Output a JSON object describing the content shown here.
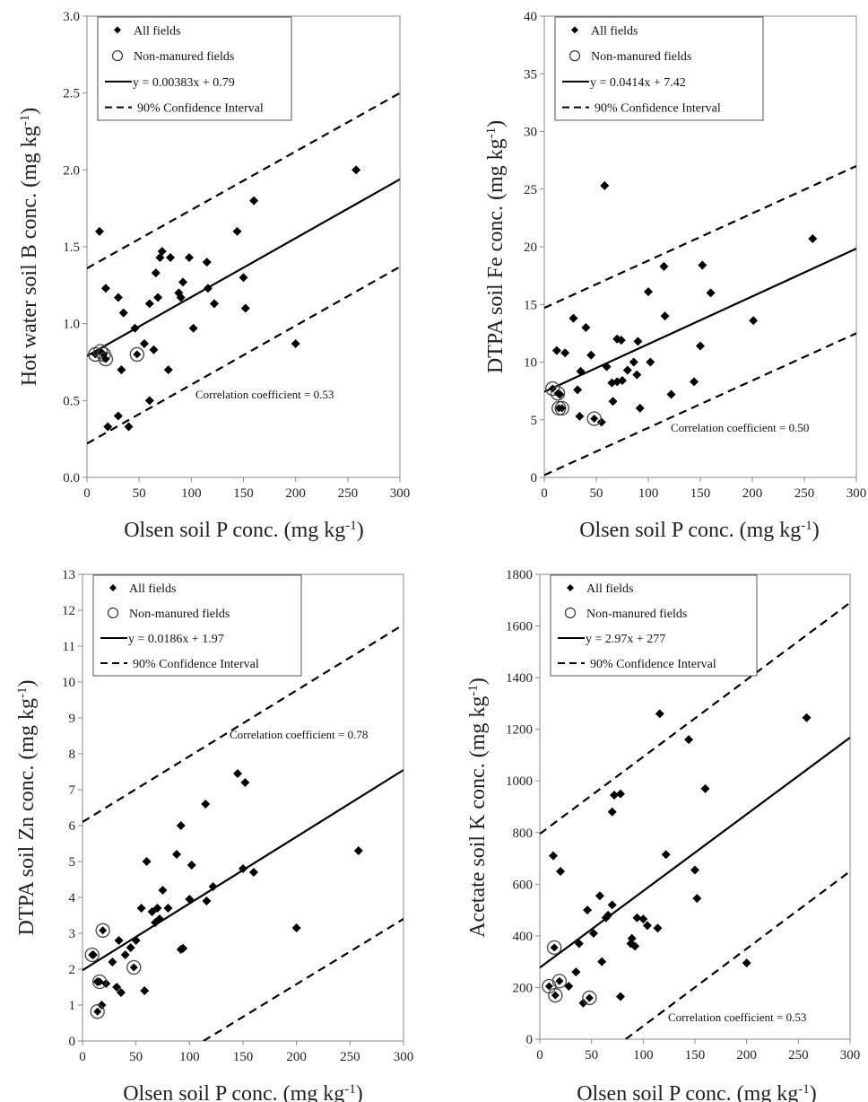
{
  "figure": {
    "legend": {
      "all_fields": "All fields",
      "non_manured": "Non-manured fields",
      "ci": "90% Confidence Interval"
    }
  },
  "chart_data": [
    {
      "type": "scatter",
      "xlabel": "Olsen soil P conc. (mg kg-1)",
      "ylabel": "Hot water soil B conc. (mg kg-1)",
      "xlim": [
        0,
        300
      ],
      "ylim": [
        0,
        3
      ],
      "xticks": [
        "0",
        "50",
        "100",
        "150",
        "200",
        "250",
        "300"
      ],
      "yticks": [
        "0.0",
        "0.5",
        "1.0",
        "1.5",
        "2.0",
        "2.5",
        "3.0"
      ],
      "equation": "y = 0.00383x + 0.79",
      "fit": {
        "slope": 0.00383,
        "intercept": 0.79
      },
      "ci": {
        "upper": [
          [
            0,
            1.36
          ],
          [
            300,
            2.5
          ]
        ],
        "lower": [
          [
            0,
            0.22
          ],
          [
            300,
            1.37
          ]
        ]
      },
      "correlation": "Correlation  coefficient  = 0.53",
      "legend_position": "top-left",
      "grid": false,
      "all_fields": [
        [
          12,
          1.6
        ],
        [
          18,
          1.23
        ],
        [
          30,
          1.17
        ],
        [
          35,
          1.07
        ],
        [
          46,
          0.97
        ],
        [
          55,
          0.87
        ],
        [
          60,
          1.13
        ],
        [
          66,
          1.33
        ],
        [
          70,
          1.43
        ],
        [
          72,
          1.47
        ],
        [
          68,
          1.17
        ],
        [
          80,
          1.43
        ],
        [
          88,
          1.2
        ],
        [
          90,
          1.17
        ],
        [
          92,
          1.27
        ],
        [
          98,
          1.43
        ],
        [
          102,
          0.97
        ],
        [
          115,
          1.4
        ],
        [
          116,
          1.23
        ],
        [
          122,
          1.13
        ],
        [
          144,
          1.6
        ],
        [
          150,
          1.3
        ],
        [
          152,
          1.1
        ],
        [
          160,
          1.8
        ],
        [
          200,
          0.87
        ],
        [
          258,
          2.0
        ],
        [
          33,
          0.7
        ],
        [
          40,
          0.33
        ],
        [
          30,
          0.4
        ],
        [
          20,
          0.33
        ],
        [
          60,
          0.5
        ],
        [
          64,
          0.83
        ],
        [
          78,
          0.7
        ]
      ],
      "non_manured": [
        [
          8,
          0.8
        ],
        [
          13,
          0.82
        ],
        [
          16,
          0.8
        ],
        [
          18,
          0.77
        ],
        [
          48,
          0.8
        ]
      ]
    },
    {
      "type": "scatter",
      "xlabel": "Olsen soil P conc. (mg kg-1)",
      "ylabel": "DTPA soil Fe conc. (mg kg-1)",
      "xlim": [
        0,
        300
      ],
      "ylim": [
        0,
        40
      ],
      "xticks": [
        "0",
        "50",
        "100",
        "150",
        "200",
        "250",
        "300"
      ],
      "yticks": [
        "0",
        "5",
        "10",
        "15",
        "20",
        "25",
        "30",
        "35",
        "40"
      ],
      "equation": "y = 0.0414x + 7.42",
      "fit": {
        "slope": 0.0414,
        "intercept": 7.42
      },
      "ci": {
        "upper": [
          [
            0,
            14.7
          ],
          [
            300,
            27.0
          ]
        ],
        "lower": [
          [
            0,
            0.2
          ],
          [
            300,
            12.5
          ]
        ]
      },
      "correlation": "Correlation  coefficient  = 0.50",
      "legend_position": "top-left",
      "grid": false,
      "all_fields": [
        [
          12,
          11.0
        ],
        [
          20,
          10.8
        ],
        [
          28,
          13.8
        ],
        [
          35,
          9.2
        ],
        [
          40,
          13.0
        ],
        [
          45,
          10.6
        ],
        [
          58,
          25.3
        ],
        [
          60,
          9.6
        ],
        [
          65,
          8.2
        ],
        [
          70,
          12.0
        ],
        [
          74,
          11.9
        ],
        [
          70,
          8.3
        ],
        [
          75,
          8.4
        ],
        [
          80,
          9.3
        ],
        [
          86,
          10.0
        ],
        [
          90,
          11.8
        ],
        [
          92,
          6.0
        ],
        [
          89,
          8.9
        ],
        [
          100,
          16.1
        ],
        [
          102,
          10.0
        ],
        [
          115,
          18.3
        ],
        [
          116,
          14.0
        ],
        [
          122,
          7.2
        ],
        [
          144,
          8.3
        ],
        [
          150,
          11.4
        ],
        [
          152,
          18.4
        ],
        [
          160,
          16.0
        ],
        [
          201,
          13.6
        ],
        [
          258,
          20.7
        ],
        [
          32,
          7.6
        ],
        [
          34,
          5.3
        ],
        [
          55,
          4.8
        ],
        [
          66,
          6.6
        ],
        [
          15,
          7.2
        ]
      ],
      "non_manured": [
        [
          8,
          7.7
        ],
        [
          13,
          7.3
        ],
        [
          14,
          6.0
        ],
        [
          17,
          6.0
        ],
        [
          48,
          5.1
        ]
      ]
    },
    {
      "type": "scatter",
      "xlabel": "Olsen soil P conc. (mg kg-1)",
      "ylabel": "DTPA soil Zn conc. (mg kg-1)",
      "xlim": [
        0,
        300
      ],
      "ylim": [
        0,
        13
      ],
      "xticks": [
        "0",
        "50",
        "100",
        "150",
        "200",
        "250",
        "300"
      ],
      "yticks": [
        "0",
        "1",
        "2",
        "3",
        "4",
        "5",
        "6",
        "7",
        "8",
        "9",
        "10",
        "11",
        "12",
        "13"
      ],
      "equation": "y = 0.0186x + 1.97",
      "fit": {
        "slope": 0.0186,
        "intercept": 1.97
      },
      "ci": {
        "upper": [
          [
            0,
            6.1
          ],
          [
            300,
            11.6
          ]
        ],
        "lower": [
          [
            113,
            0
          ],
          [
            300,
            3.4
          ]
        ]
      },
      "correlation": "Correlation  coefficient  = 0.78",
      "legend_position": "top-left",
      "grid": false,
      "all_fields": [
        [
          10,
          2.4
        ],
        [
          14,
          1.65
        ],
        [
          18,
          1.0
        ],
        [
          22,
          1.6
        ],
        [
          28,
          2.2
        ],
        [
          32,
          1.5
        ],
        [
          36,
          1.35
        ],
        [
          34,
          2.8
        ],
        [
          40,
          2.4
        ],
        [
          45,
          2.6
        ],
        [
          50,
          2.8
        ],
        [
          55,
          3.7
        ],
        [
          58,
          1.4
        ],
        [
          60,
          5.0
        ],
        [
          65,
          3.6
        ],
        [
          68,
          3.3
        ],
        [
          70,
          3.7
        ],
        [
          72,
          3.4
        ],
        [
          75,
          4.2
        ],
        [
          80,
          3.7
        ],
        [
          88,
          5.2
        ],
        [
          92,
          6.0
        ],
        [
          92,
          2.55
        ],
        [
          94,
          2.58
        ],
        [
          100,
          3.95
        ],
        [
          102,
          4.9
        ],
        [
          115,
          6.6
        ],
        [
          116,
          3.9
        ],
        [
          122,
          4.3
        ],
        [
          145,
          7.45
        ],
        [
          152,
          7.2
        ],
        [
          150,
          4.8
        ],
        [
          160,
          4.7
        ],
        [
          200,
          3.15
        ],
        [
          258,
          5.3
        ]
      ],
      "non_manured": [
        [
          9,
          2.4
        ],
        [
          14,
          0.82
        ],
        [
          16,
          1.65
        ],
        [
          19,
          3.08
        ],
        [
          48,
          2.05
        ]
      ]
    },
    {
      "type": "scatter",
      "xlabel": "Olsen soil P conc. (mg kg-1)",
      "ylabel": "Acetate soil K conc. (mg kg-1)",
      "xlim": [
        0,
        300
      ],
      "ylim": [
        0,
        1800
      ],
      "xticks": [
        "0",
        "50",
        "100",
        "150",
        "200",
        "250",
        "300"
      ],
      "yticks": [
        "0",
        "200",
        "400",
        "600",
        "800",
        "1000",
        "1200",
        "1400",
        "1600",
        "1800"
      ],
      "equation": "y = 2.97x + 277",
      "fit": {
        "slope": 2.97,
        "intercept": 277
      },
      "ci": {
        "upper": [
          [
            0,
            795
          ],
          [
            300,
            1690
          ]
        ],
        "lower": [
          [
            83,
            0
          ],
          [
            300,
            650
          ]
        ]
      },
      "correlation": "Correlation  coefficient  = 0.53",
      "legend_position": "top-left",
      "grid": false,
      "all_fields": [
        [
          13,
          710
        ],
        [
          20,
          650
        ],
        [
          28,
          205
        ],
        [
          35,
          260
        ],
        [
          38,
          370
        ],
        [
          42,
          140
        ],
        [
          46,
          500
        ],
        [
          52,
          410
        ],
        [
          58,
          555
        ],
        [
          60,
          300
        ],
        [
          64,
          470
        ],
        [
          66,
          480
        ],
        [
          70,
          520
        ],
        [
          70,
          880
        ],
        [
          72,
          945
        ],
        [
          78,
          950
        ],
        [
          78,
          165
        ],
        [
          88,
          370
        ],
        [
          89,
          390
        ],
        [
          92,
          360
        ],
        [
          94,
          470
        ],
        [
          100,
          465
        ],
        [
          104,
          440
        ],
        [
          114,
          430
        ],
        [
          116,
          1260
        ],
        [
          122,
          715
        ],
        [
          144,
          1160
        ],
        [
          150,
          655
        ],
        [
          152,
          545
        ],
        [
          160,
          970
        ],
        [
          200,
          295
        ],
        [
          258,
          1245
        ]
      ],
      "non_manured": [
        [
          9,
          205
        ],
        [
          14,
          355
        ],
        [
          15,
          170
        ],
        [
          19,
          225
        ],
        [
          48,
          160
        ]
      ]
    }
  ]
}
